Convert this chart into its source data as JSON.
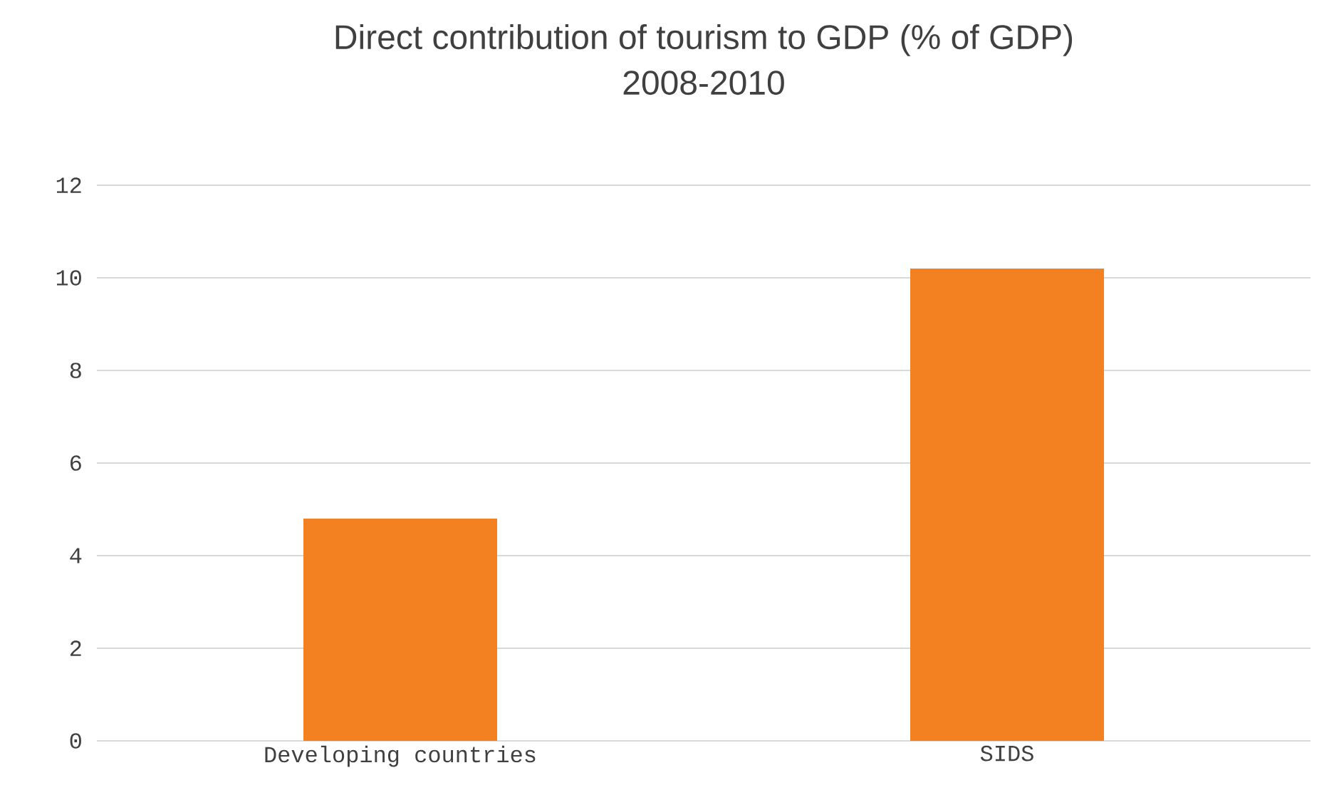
{
  "chart_data": {
    "type": "bar",
    "title": "Direct contribution of tourism to GDP  (% of GDP)",
    "subtitle": "2008-2010",
    "categories": [
      "Developing countries",
      "SIDS"
    ],
    "values": [
      4.8,
      10.2
    ],
    "color": "#f38121",
    "ylim": [
      0,
      12
    ],
    "yticks": [
      0,
      2,
      4,
      6,
      8,
      10,
      12
    ],
    "grid": "y"
  }
}
